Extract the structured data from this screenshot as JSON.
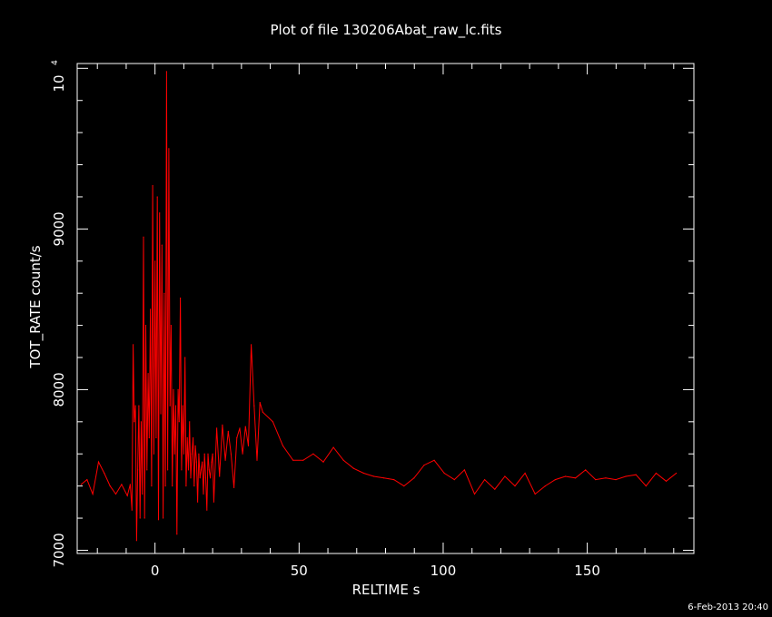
{
  "chart_data": {
    "type": "line",
    "title": "Plot of file 130206Abat_raw_lc.fits",
    "xlabel": "RELTIME  s",
    "ylabel": "TOT_RATE  count/s",
    "xlim": [
      -27,
      187
    ],
    "ylim": [
      6980,
      10030
    ],
    "x_ticks": [
      "0",
      "50",
      "100",
      "150"
    ],
    "y_ticks": [
      "7000",
      "8000",
      "9000"
    ],
    "y_top_tick": {
      "base": "10",
      "exponent": "4"
    },
    "timestamp": "6-Feb-2013 20:40",
    "grid": false,
    "colors": {
      "background": "#000000",
      "axes": "#ffffff",
      "series": "#ff0000"
    },
    "series": [
      {
        "x": [
          -25.6,
          -23.6,
          -21.6,
          -19.6,
          -17.6,
          -15.6,
          -13.6,
          -11.6,
          -9.6,
          -8.6,
          -8.0,
          -7.6,
          -7.2,
          -6.8,
          -6.4,
          -6.0,
          -5.6,
          -5.2,
          -4.8,
          -4.4,
          -4.0,
          -3.6,
          -3.2,
          -2.8,
          -2.4,
          -2.0,
          -1.6,
          -1.2,
          -0.8,
          -0.4,
          0.0,
          0.4,
          0.8,
          1.2,
          1.6,
          2.0,
          2.4,
          2.8,
          3.2,
          3.6,
          4.0,
          4.4,
          4.8,
          5.2,
          5.6,
          6.0,
          6.4,
          6.8,
          7.2,
          7.6,
          8.0,
          8.4,
          8.8,
          9.2,
          9.6,
          10.0,
          10.4,
          10.8,
          11.2,
          11.6,
          12.0,
          12.4,
          12.8,
          13.2,
          13.6,
          14.0,
          14.4,
          14.8,
          15.2,
          15.6,
          16.0,
          16.4,
          16.8,
          17.2,
          17.6,
          18.0,
          18.4,
          18.8,
          19.2,
          19.6,
          20.0,
          20.4,
          21.4,
          22.4,
          23.4,
          24.4,
          25.4,
          26.4,
          27.4,
          28.4,
          29.4,
          30.4,
          31.4,
          32.4,
          33.4,
          34.4,
          35.4,
          36.4,
          37.4,
          40.9,
          44.4,
          47.9,
          51.4,
          54.9,
          58.4,
          61.9,
          65.4,
          68.9,
          72.4,
          75.9,
          79.4,
          82.9,
          86.4,
          89.9,
          93.4,
          96.9,
          100.4,
          103.9,
          107.4,
          110.9,
          114.4,
          117.9,
          121.4,
          124.9,
          128.4,
          131.9,
          135.4,
          138.9,
          142.4,
          145.9,
          149.4,
          152.9,
          156.4,
          159.9,
          163.4,
          166.9,
          170.4,
          173.9,
          177.4,
          180.9
        ],
        "y": [
          7410,
          7440,
          7350,
          7550,
          7480,
          7400,
          7350,
          7410,
          7340,
          7410,
          7250,
          8280,
          7800,
          7900,
          7060,
          7500,
          7900,
          7200,
          7800,
          7350,
          8950,
          7200,
          8400,
          7500,
          8100,
          7700,
          8500,
          7400,
          9270,
          7600,
          8800,
          7700,
          9200,
          7190,
          9100,
          7850,
          8900,
          7200,
          8600,
          7400,
          9980,
          7500,
          9500,
          7900,
          8400,
          7400,
          8000,
          7600,
          7900,
          7100,
          8000,
          7800,
          8570,
          7500,
          7900,
          7600,
          8200,
          7400,
          7700,
          7500,
          7800,
          7450,
          7600,
          7700,
          7400,
          7650,
          7550,
          7300,
          7600,
          7450,
          7500,
          7550,
          7350,
          7600,
          7450,
          7250,
          7600,
          7500,
          7450,
          7550,
          7600,
          7300,
          7760,
          7460,
          7780,
          7560,
          7740,
          7600,
          7390,
          7700,
          7760,
          7600,
          7770,
          7650,
          8280,
          7900,
          7560,
          7920,
          7860,
          7800,
          7650,
          7560,
          7560,
          7600,
          7550,
          7640,
          7560,
          7510,
          7480,
          7460,
          7450,
          7440,
          7400,
          7450,
          7530,
          7560,
          7480,
          7440,
          7500,
          7350,
          7440,
          7380,
          7460,
          7400,
          7480,
          7350,
          7400,
          7440,
          7460,
          7450,
          7500,
          7440,
          7450,
          7440,
          7460,
          7470,
          7400,
          7480,
          7430,
          7480
        ]
      }
    ]
  }
}
